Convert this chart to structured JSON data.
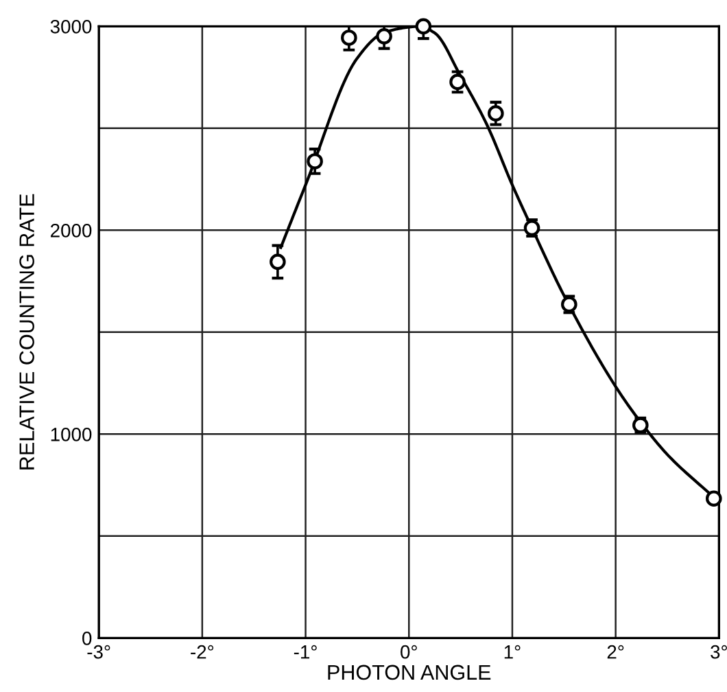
{
  "chart_data": {
    "type": "scatter",
    "xlabel": "PHOTON ANGLE",
    "ylabel": "RELATIVE COUNTING RATE",
    "xlim": [
      -3,
      3
    ],
    "ylim": [
      0,
      3000
    ],
    "xticks": [
      {
        "value": -3,
        "label": "-3°"
      },
      {
        "value": -2,
        "label": "-2°"
      },
      {
        "value": -1,
        "label": "-1°"
      },
      {
        "value": 0,
        "label": "0°"
      },
      {
        "value": 1,
        "label": "1°"
      },
      {
        "value": 2,
        "label": "2°"
      },
      {
        "value": 3,
        "label": "3°"
      }
    ],
    "yticks": [
      0,
      {
        "value": 500,
        "label": null
      },
      1000,
      {
        "value": 1500,
        "label": null
      },
      2000,
      {
        "value": 2500,
        "label": null
      },
      3000
    ],
    "grid": true,
    "series": [
      {
        "marker": "circle",
        "color": "#000000",
        "x": [
          -1.27,
          -0.91,
          -0.58,
          -0.24,
          0.14,
          0.47,
          0.84,
          1.19,
          1.55,
          2.24,
          2.95
        ],
        "values": [
          1845,
          2338,
          2944,
          2951,
          3000,
          2727,
          2573,
          2011,
          1636,
          1044,
          684
        ],
        "errors": [
          80,
          60,
          60,
          60,
          60,
          50,
          55,
          40,
          40,
          35,
          null
        ]
      },
      {
        "type": "line",
        "marker": "none",
        "line_style": "solid",
        "color": "#000000",
        "x": [
          -1.24,
          -1.0,
          -0.5,
          -0.25,
          0.0,
          0.1,
          0.25,
          0.5,
          0.75,
          1.0,
          1.19,
          1.5,
          2.0,
          2.24,
          2.5,
          2.95
        ],
        "values": [
          1915,
          2222,
          2844,
          2967,
          2996,
          3000,
          2967,
          2756,
          2522,
          2222,
          2011,
          1680,
          1233,
          1060,
          900,
          690
        ]
      }
    ]
  }
}
